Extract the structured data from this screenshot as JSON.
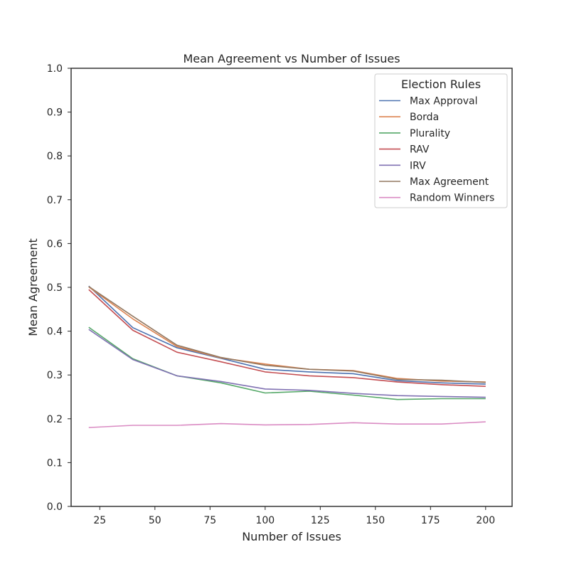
{
  "chart_data": {
    "type": "line",
    "title": "Mean Agreement vs Number of Issues",
    "xlabel": "Number of Issues",
    "ylabel": "Mean Agreement",
    "xlim": [
      12,
      212
    ],
    "ylim": [
      0.0,
      1.0
    ],
    "xticks": [
      "25",
      "50",
      "75",
      "100",
      "125",
      "150",
      "175",
      "200"
    ],
    "xtick_values": [
      25,
      50,
      75,
      100,
      125,
      150,
      175,
      200
    ],
    "yticks": [
      "0.0",
      "0.1",
      "0.2",
      "0.3",
      "0.4",
      "0.5",
      "0.6",
      "0.7",
      "0.8",
      "0.9",
      "1.0"
    ],
    "ytick_values": [
      0.0,
      0.1,
      0.2,
      0.3,
      0.4,
      0.5,
      0.6,
      0.7,
      0.8,
      0.9,
      1.0
    ],
    "grid": false,
    "legend": {
      "title": "Election Rules",
      "placement": "top-right"
    },
    "x": [
      20,
      40,
      60,
      80,
      100,
      120,
      140,
      160,
      180,
      200
    ],
    "series": [
      {
        "name": "Max Approval",
        "color": "#4c72b0",
        "values": [
          0.503,
          0.408,
          0.362,
          0.338,
          0.313,
          0.307,
          0.303,
          0.287,
          0.282,
          0.279
        ]
      },
      {
        "name": "Borda",
        "color": "#dd8452",
        "values": [
          0.501,
          0.428,
          0.365,
          0.339,
          0.325,
          0.313,
          0.31,
          0.292,
          0.286,
          0.284
        ]
      },
      {
        "name": "Plurality",
        "color": "#55a868",
        "values": [
          0.409,
          0.337,
          0.298,
          0.282,
          0.259,
          0.263,
          0.254,
          0.244,
          0.246,
          0.246
        ]
      },
      {
        "name": "RAV",
        "color": "#c44e52",
        "values": [
          0.495,
          0.402,
          0.352,
          0.33,
          0.307,
          0.298,
          0.294,
          0.284,
          0.278,
          0.274
        ]
      },
      {
        "name": "IRV",
        "color": "#8172b3",
        "values": [
          0.404,
          0.335,
          0.298,
          0.285,
          0.268,
          0.265,
          0.258,
          0.253,
          0.251,
          0.249
        ]
      },
      {
        "name": "Max Agreement",
        "color": "#937860",
        "values": [
          0.502,
          0.434,
          0.368,
          0.34,
          0.322,
          0.313,
          0.309,
          0.29,
          0.288,
          0.283
        ]
      },
      {
        "name": "Random Winners",
        "color": "#da8bc3",
        "values": [
          0.18,
          0.185,
          0.185,
          0.189,
          0.186,
          0.187,
          0.191,
          0.188,
          0.188,
          0.193
        ]
      }
    ]
  }
}
